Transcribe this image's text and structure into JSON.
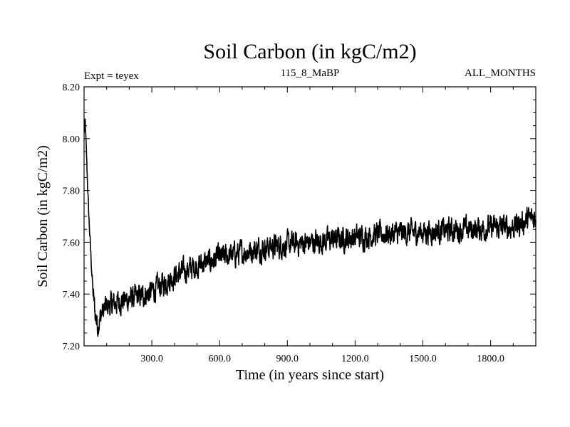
{
  "chart_data": {
    "type": "line",
    "title": "Soil Carbon (in kgC/m2)",
    "subtitle_left": "Expt = teyex",
    "subtitle_center": "115_8_MaBP",
    "subtitle_right": "ALL_MONTHS",
    "xlabel": "Time (in years since start)",
    "ylabel": "Soil Carbon (in kgC/m2)",
    "xlim": [
      0,
      2000
    ],
    "ylim": [
      7.2,
      8.2
    ],
    "x_ticks": [
      300,
      600,
      900,
      1200,
      1500,
      1800
    ],
    "x_tick_labels": [
      "300.0",
      "600.0",
      "900.0",
      "1200.0",
      "1500.0",
      "1800.0"
    ],
    "y_ticks": [
      7.2,
      7.4,
      7.6,
      7.8,
      8.0,
      8.2
    ],
    "y_tick_labels": [
      "7.20",
      "7.40",
      "7.60",
      "7.80",
      "8.00",
      "8.20"
    ],
    "grid": false,
    "series": [
      {
        "name": "Soil Carbon",
        "color": "#000000",
        "trend_x": [
          0,
          5,
          10,
          20,
          30,
          40,
          50,
          60,
          80,
          100,
          150,
          200,
          250,
          300,
          350,
          400,
          450,
          500,
          600,
          700,
          800,
          900,
          1000,
          1100,
          1200,
          1300,
          1400,
          1500,
          1600,
          1700,
          1800,
          1900,
          2000
        ],
        "trend_y": [
          8.02,
          8.06,
          7.95,
          7.72,
          7.55,
          7.4,
          7.32,
          7.28,
          7.33,
          7.35,
          7.37,
          7.38,
          7.39,
          7.41,
          7.44,
          7.47,
          7.49,
          7.51,
          7.54,
          7.56,
          7.58,
          7.59,
          7.6,
          7.61,
          7.62,
          7.63,
          7.635,
          7.64,
          7.645,
          7.65,
          7.655,
          7.66,
          7.7
        ],
        "noise_amplitude": 0.05
      }
    ]
  }
}
